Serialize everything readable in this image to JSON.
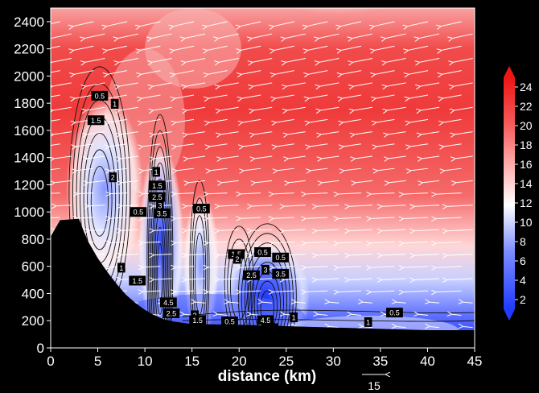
{
  "chart_data": {
    "type": "heatmap",
    "title": "",
    "xlabel": "distance (km)",
    "ylabel": "",
    "xlim": [
      0,
      45
    ],
    "ylim": [
      0,
      2500
    ],
    "x_ticks": [
      0,
      5,
      10,
      15,
      20,
      25,
      30,
      35,
      40,
      45
    ],
    "y_ticks": [
      0,
      200,
      400,
      600,
      800,
      1000,
      1200,
      1400,
      1600,
      1800,
      2000,
      2200,
      2400
    ],
    "colorbar": {
      "ticks": [
        2,
        4,
        6,
        8,
        10,
        12,
        14,
        16,
        18,
        20,
        22,
        24
      ],
      "range": [
        1,
        25
      ],
      "colormap": "blue-white-red",
      "low_color": "#1f3bff",
      "mid_color": "#ffffff",
      "high_color": "#ef1a1a"
    },
    "vector_reference": {
      "label": "15"
    },
    "terrain": [
      [
        0,
        820
      ],
      [
        1,
        940
      ],
      [
        3,
        950
      ],
      [
        3.5,
        860
      ],
      [
        4,
        780
      ],
      [
        5,
        660
      ],
      [
        6,
        560
      ],
      [
        7,
        470
      ],
      [
        8,
        390
      ],
      [
        9,
        330
      ],
      [
        10,
        280
      ],
      [
        11,
        240
      ],
      [
        12,
        210
      ],
      [
        13,
        195
      ],
      [
        15,
        175
      ],
      [
        20,
        170
      ],
      [
        25,
        160
      ],
      [
        30,
        150
      ],
      [
        35,
        140
      ],
      [
        40,
        130
      ],
      [
        45,
        130
      ]
    ],
    "contour_labels": [
      {
        "x": 5.2,
        "y": 1855,
        "text": "0.5"
      },
      {
        "x": 6.8,
        "y": 1795,
        "text": "1"
      },
      {
        "x": 4.8,
        "y": 1675,
        "text": "1.5"
      },
      {
        "x": 6.6,
        "y": 1255,
        "text": "2"
      },
      {
        "x": 9.3,
        "y": 1000,
        "text": "0.5"
      },
      {
        "x": 11.2,
        "y": 1295,
        "text": "1"
      },
      {
        "x": 11.3,
        "y": 1195,
        "text": "1.5"
      },
      {
        "x": 11.3,
        "y": 1110,
        "text": "2.5"
      },
      {
        "x": 11.6,
        "y": 1050,
        "text": "3"
      },
      {
        "x": 11.8,
        "y": 990,
        "text": "3.5"
      },
      {
        "x": 16.0,
        "y": 1025,
        "text": "0.5"
      },
      {
        "x": 7.5,
        "y": 590,
        "text": "1"
      },
      {
        "x": 9.2,
        "y": 495,
        "text": "1.5"
      },
      {
        "x": 12.5,
        "y": 335,
        "text": "4.5"
      },
      {
        "x": 12.8,
        "y": 255,
        "text": "2.5"
      },
      {
        "x": 15.3,
        "y": 240,
        "text": "2"
      },
      {
        "x": 15.6,
        "y": 205,
        "text": "1.5"
      },
      {
        "x": 19.7,
        "y": 690,
        "text": "1.5"
      },
      {
        "x": 19.8,
        "y": 655,
        "text": "2"
      },
      {
        "x": 22.5,
        "y": 705,
        "text": "0.5"
      },
      {
        "x": 21.3,
        "y": 535,
        "text": "2.5"
      },
      {
        "x": 22.8,
        "y": 575,
        "text": "3"
      },
      {
        "x": 24.4,
        "y": 665,
        "text": "0.5"
      },
      {
        "x": 24.4,
        "y": 545,
        "text": "3.5"
      },
      {
        "x": 22.8,
        "y": 205,
        "text": "4.5"
      },
      {
        "x": 23.3,
        "y": 145,
        "text": "1.5"
      },
      {
        "x": 19.0,
        "y": 195,
        "text": "0.5"
      },
      {
        "x": 25.8,
        "y": 225,
        "text": "1"
      },
      {
        "x": 33.7,
        "y": 190,
        "text": "1"
      },
      {
        "x": 36.5,
        "y": 260,
        "text": "0.5"
      }
    ]
  }
}
